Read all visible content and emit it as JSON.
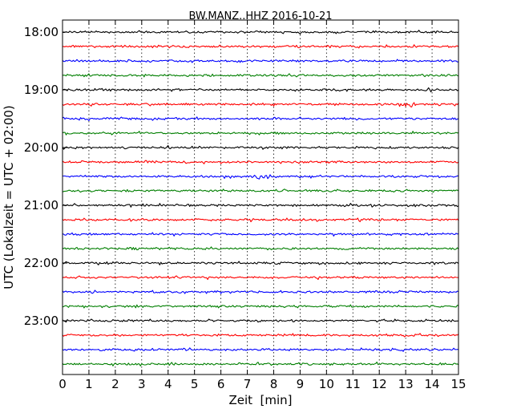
{
  "chart_data": {
    "type": "line",
    "subtype": "helicorder / dayplot",
    "title": "BW.MANZ..HHZ 2016-10-21",
    "xlabel": "Zeit  [min]",
    "ylabel": "UTC (Lokalzeit = UTC + 02:00)",
    "xlim": [
      0,
      15
    ],
    "x_ticks": [
      0,
      1,
      2,
      3,
      4,
      5,
      6,
      7,
      8,
      9,
      10,
      11,
      12,
      13,
      14,
      15
    ],
    "y_tick_labels": [
      "18:00",
      "19:00",
      "20:00",
      "21:00",
      "22:00",
      "23:00"
    ],
    "y_tick_rows": [
      0,
      4,
      8,
      12,
      16,
      20
    ],
    "row_count": 24,
    "row_minutes": 15,
    "grid": {
      "vertical_dotted": true,
      "horizontal": false
    },
    "trace_colors": [
      "#000000",
      "#ff0000",
      "#0000ff",
      "#007f00"
    ],
    "rows": [
      {
        "start": "18:00",
        "amplitude": "low"
      },
      {
        "start": "18:15",
        "amplitude": "low"
      },
      {
        "start": "18:30",
        "amplitude": "low"
      },
      {
        "start": "18:45",
        "amplitude": "low"
      },
      {
        "start": "19:00",
        "amplitude": "low"
      },
      {
        "start": "19:15",
        "amplitude": "low",
        "burst_min": 13.1
      },
      {
        "start": "19:30",
        "amplitude": "low"
      },
      {
        "start": "19:45",
        "amplitude": "low"
      },
      {
        "start": "20:00",
        "amplitude": "low"
      },
      {
        "start": "20:15",
        "amplitude": "low"
      },
      {
        "start": "20:30",
        "amplitude": "low",
        "burst_min": 7.6
      },
      {
        "start": "20:45",
        "amplitude": "low"
      },
      {
        "start": "21:00",
        "amplitude": "low"
      },
      {
        "start": "21:15",
        "amplitude": "low"
      },
      {
        "start": "21:30",
        "amplitude": "low"
      },
      {
        "start": "21:45",
        "amplitude": "low"
      },
      {
        "start": "22:00",
        "amplitude": "low"
      },
      {
        "start": "22:15",
        "amplitude": "low"
      },
      {
        "start": "22:30",
        "amplitude": "low"
      },
      {
        "start": "22:45",
        "amplitude": "low"
      },
      {
        "start": "23:00",
        "amplitude": "low"
      },
      {
        "start": "23:15",
        "amplitude": "low"
      },
      {
        "start": "23:30",
        "amplitude": "low"
      },
      {
        "start": "23:45",
        "amplitude": "low"
      }
    ]
  }
}
